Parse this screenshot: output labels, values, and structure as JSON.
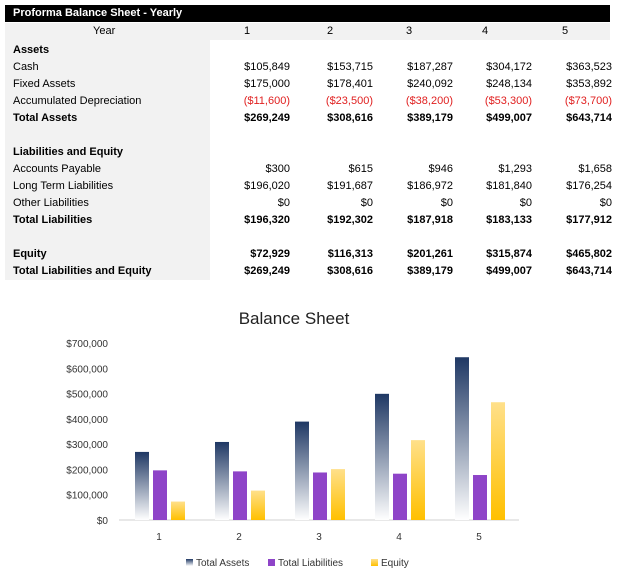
{
  "table": {
    "title": "Proforma Balance Sheet - Yearly",
    "year_label": "Year",
    "years": [
      "1",
      "2",
      "3",
      "4",
      "5"
    ],
    "rows": [
      {
        "label": "Assets",
        "bold": true,
        "values": []
      },
      {
        "label": "Cash",
        "values": [
          "$105,849",
          "$153,715",
          "$187,287",
          "$304,172",
          "$363,523"
        ]
      },
      {
        "label": "Fixed Assets",
        "values": [
          "$175,000",
          "$178,401",
          "$240,092",
          "$248,134",
          "$353,892"
        ]
      },
      {
        "label": "Accumulated Depreciation",
        "negative": true,
        "values": [
          "($11,600)",
          "($23,500)",
          "($38,200)",
          "($53,300)",
          "($73,700)"
        ]
      },
      {
        "label": "Total Assets",
        "bold": true,
        "values": [
          "$269,249",
          "$308,616",
          "$389,179",
          "$499,007",
          "$643,714"
        ]
      },
      {
        "label": "",
        "values": []
      },
      {
        "label": "Liabilities and Equity",
        "bold": true,
        "values": []
      },
      {
        "label": "Accounts Payable",
        "values": [
          "$300",
          "$615",
          "$946",
          "$1,293",
          "$1,658"
        ]
      },
      {
        "label": "Long Term Liabilities",
        "values": [
          "$196,020",
          "$191,687",
          "$186,972",
          "$181,840",
          "$176,254"
        ]
      },
      {
        "label": "Other Liabilities",
        "values": [
          "$0",
          "$0",
          "$0",
          "$0",
          "$0"
        ]
      },
      {
        "label": "Total Liabilities",
        "bold": true,
        "values": [
          "$196,320",
          "$192,302",
          "$187,918",
          "$183,133",
          "$177,912"
        ]
      },
      {
        "label": "",
        "values": []
      },
      {
        "label": "Equity",
        "bold": true,
        "values": [
          "$72,929",
          "$116,313",
          "$201,261",
          "$315,874",
          "$465,802"
        ]
      },
      {
        "label": "Total Liabilities and Equity",
        "bold": true,
        "values": [
          "$269,249",
          "$308,616",
          "$389,179",
          "$499,007",
          "$643,714"
        ]
      }
    ],
    "negative_color": "#e02020"
  },
  "chart_data": {
    "type": "bar",
    "title": "Balance Sheet",
    "categories": [
      "1",
      "2",
      "3",
      "4",
      "5"
    ],
    "series": [
      {
        "name": "Total Assets",
        "values": [
          269249,
          308616,
          389179,
          499007,
          643714
        ],
        "color": "#1f3864"
      },
      {
        "name": "Total Liabilities",
        "values": [
          196320,
          192302,
          187918,
          183133,
          177912
        ],
        "color": "#8e44c8"
      },
      {
        "name": "Equity",
        "values": [
          72929,
          116313,
          201261,
          315874,
          465802
        ],
        "color": "#ffc000"
      }
    ],
    "ylim": [
      0,
      700000
    ],
    "yticks": [
      "$0",
      "$100,000",
      "$200,000",
      "$300,000",
      "$400,000",
      "$500,000",
      "$600,000",
      "$700,000"
    ],
    "grid": false,
    "legend": "bottom"
  }
}
